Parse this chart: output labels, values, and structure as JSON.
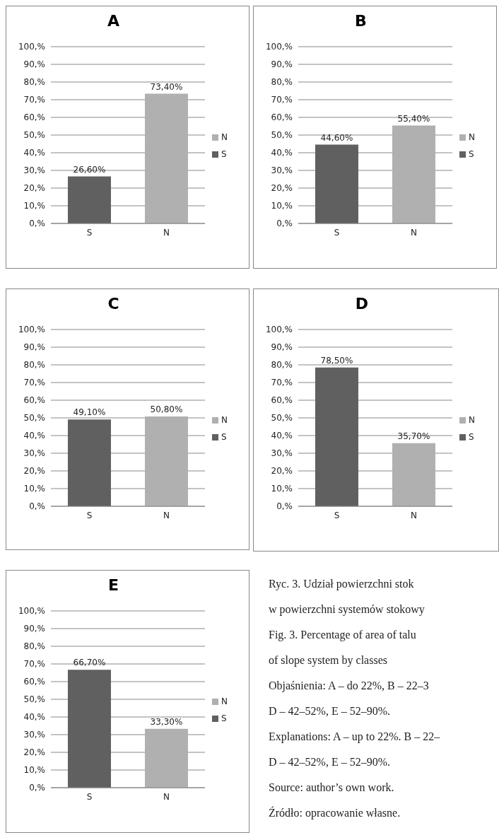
{
  "chart_data": [
    {
      "type": "bar",
      "title": "A",
      "categories": [
        "S",
        "N"
      ],
      "series": [
        {
          "name": "S",
          "color": "#606060",
          "values": [
            26.6,
            null
          ],
          "value_labels": [
            "26,60%",
            null
          ]
        },
        {
          "name": "N",
          "color": "#b0b0b0",
          "values": [
            null,
            73.4
          ],
          "value_labels": [
            null,
            "73,40%"
          ]
        }
      ],
      "ylim": [
        0,
        100
      ],
      "yticks": [
        {
          "value": 0,
          "label": "0,%"
        },
        {
          "value": 10,
          "label": "10,%"
        },
        {
          "value": 20,
          "label": "20,%"
        },
        {
          "value": 30,
          "label": "30,%"
        },
        {
          "value": 40,
          "label": "40,%"
        },
        {
          "value": 50,
          "label": "50,%"
        },
        {
          "value": 60,
          "label": "60,%"
        },
        {
          "value": 70,
          "label": "70,%"
        },
        {
          "value": 80,
          "label": "80,%"
        },
        {
          "value": 90,
          "label": "90,%"
        },
        {
          "value": 100,
          "label": "100,%"
        }
      ],
      "grid": "y",
      "legend": "right"
    },
    {
      "type": "bar",
      "title": "B",
      "categories": [
        "S",
        "N"
      ],
      "series": [
        {
          "name": "S",
          "color": "#606060",
          "values": [
            44.6,
            null
          ],
          "value_labels": [
            "44,60%",
            null
          ]
        },
        {
          "name": "N",
          "color": "#b0b0b0",
          "values": [
            null,
            55.4
          ],
          "value_labels": [
            null,
            "55,40%"
          ]
        }
      ],
      "ylim": [
        0,
        100
      ],
      "yticks": [
        {
          "value": 0,
          "label": "0,%"
        },
        {
          "value": 10,
          "label": "10,%"
        },
        {
          "value": 20,
          "label": "20,%"
        },
        {
          "value": 30,
          "label": "30,%"
        },
        {
          "value": 40,
          "label": "40,%"
        },
        {
          "value": 50,
          "label": "50,%"
        },
        {
          "value": 60,
          "label": "60,%"
        },
        {
          "value": 70,
          "label": "70,%"
        },
        {
          "value": 80,
          "label": "80,%"
        },
        {
          "value": 90,
          "label": "90,%"
        },
        {
          "value": 100,
          "label": "100,%"
        }
      ],
      "grid": "y",
      "legend": "right"
    },
    {
      "type": "bar",
      "title": "C",
      "categories": [
        "S",
        "N"
      ],
      "series": [
        {
          "name": "S",
          "color": "#606060",
          "values": [
            49.1,
            null
          ],
          "value_labels": [
            "49,10%",
            null
          ]
        },
        {
          "name": "N",
          "color": "#b0b0b0",
          "values": [
            null,
            50.8
          ],
          "value_labels": [
            null,
            "50,80%"
          ]
        }
      ],
      "ylim": [
        0,
        100
      ],
      "yticks": [
        {
          "value": 0,
          "label": "0,%"
        },
        {
          "value": 10,
          "label": "10,%"
        },
        {
          "value": 20,
          "label": "20,%"
        },
        {
          "value": 30,
          "label": "30,%"
        },
        {
          "value": 40,
          "label": "40,%"
        },
        {
          "value": 50,
          "label": "50,%"
        },
        {
          "value": 60,
          "label": "60,%"
        },
        {
          "value": 70,
          "label": "70,%"
        },
        {
          "value": 80,
          "label": "80,%"
        },
        {
          "value": 90,
          "label": "90,%"
        },
        {
          "value": 100,
          "label": "100,%"
        }
      ],
      "grid": "y",
      "legend": "right"
    },
    {
      "type": "bar",
      "title": "D",
      "categories": [
        "S",
        "N"
      ],
      "series": [
        {
          "name": "S",
          "color": "#606060",
          "values": [
            78.5,
            null
          ],
          "value_labels": [
            "78,50%",
            null
          ]
        },
        {
          "name": "N",
          "color": "#b0b0b0",
          "values": [
            null,
            35.7
          ],
          "value_labels": [
            null,
            "35,70%"
          ]
        }
      ],
      "ylim": [
        0,
        100
      ],
      "yticks": [
        {
          "value": 0,
          "label": "0,%"
        },
        {
          "value": 10,
          "label": "10,%"
        },
        {
          "value": 20,
          "label": "20,%"
        },
        {
          "value": 30,
          "label": "30,%"
        },
        {
          "value": 40,
          "label": "40,%"
        },
        {
          "value": 50,
          "label": "50,%"
        },
        {
          "value": 60,
          "label": "60,%"
        },
        {
          "value": 70,
          "label": "70,%"
        },
        {
          "value": 80,
          "label": "80,%"
        },
        {
          "value": 90,
          "label": "90,%"
        },
        {
          "value": 100,
          "label": "100,%"
        }
      ],
      "grid": "y",
      "legend": "right"
    },
    {
      "type": "bar",
      "title": "E",
      "categories": [
        "S",
        "N"
      ],
      "series": [
        {
          "name": "S",
          "color": "#606060",
          "values": [
            66.7,
            null
          ],
          "value_labels": [
            "66,70%",
            null
          ]
        },
        {
          "name": "N",
          "color": "#b0b0b0",
          "values": [
            null,
            33.3
          ],
          "value_labels": [
            null,
            "33,30%"
          ]
        }
      ],
      "ylim": [
        0,
        100
      ],
      "yticks": [
        {
          "value": 0,
          "label": "0,%"
        },
        {
          "value": 10,
          "label": "10,%"
        },
        {
          "value": 20,
          "label": "20,%"
        },
        {
          "value": 30,
          "label": "30,%"
        },
        {
          "value": 40,
          "label": "40,%"
        },
        {
          "value": 50,
          "label": "50,%"
        },
        {
          "value": 60,
          "label": "60,%"
        },
        {
          "value": 70,
          "label": "70,%"
        },
        {
          "value": 80,
          "label": "80,%"
        },
        {
          "value": 90,
          "label": "90,%"
        },
        {
          "value": 100,
          "label": "100,%"
        }
      ],
      "grid": "y",
      "legend": "right"
    },
    {
      "type": "other",
      "annotations": [
        "Ryc. 3. Udział powierzchni stok",
        "w powierzchni systemów stokowy",
        "Fig. 3. Percentage of area of talu",
        "of slope system by classes",
        "Objaśnienia: A – do 22%, B – 22–3",
        "D – 42–52%, E – 52–90%.",
        "Explanations: A – up to 22%. B – 22–",
        "D – 42–52%, E – 52–90%.",
        "Source: author’s own work.",
        "Źródło: opracowanie własne."
      ]
    }
  ]
}
